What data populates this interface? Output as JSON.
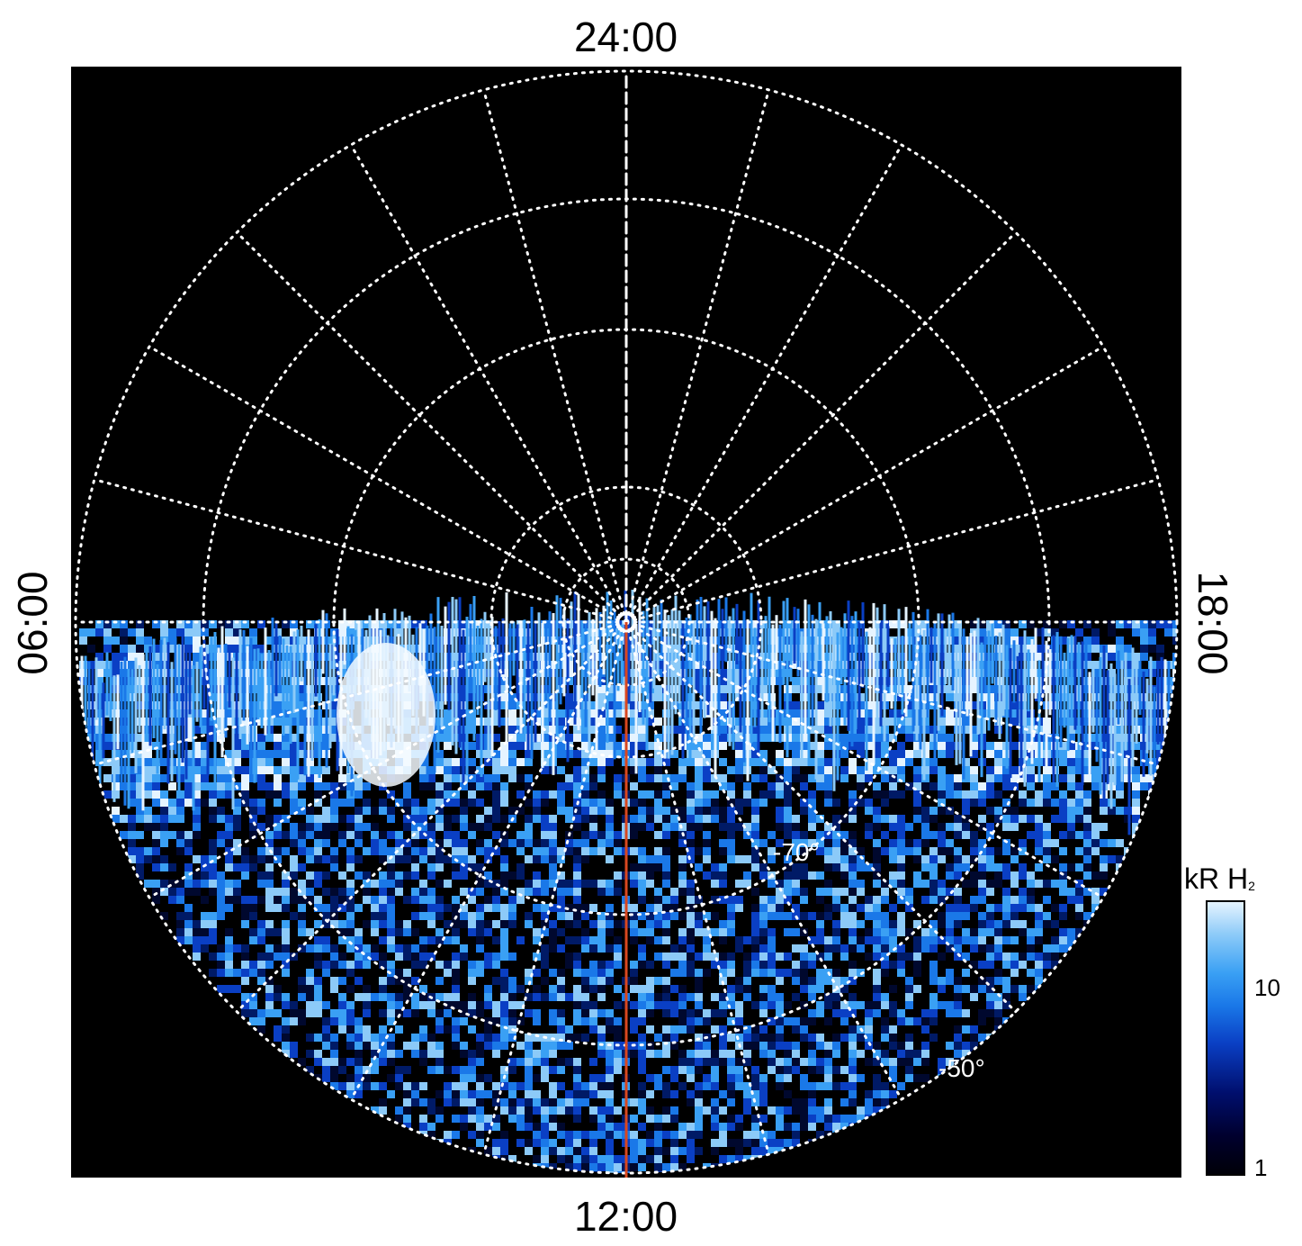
{
  "local_time_labels": {
    "top": "24:00",
    "bottom": "12:00",
    "left": "06:00",
    "right": "18:00"
  },
  "latitude_labels": [
    {
      "text": "-70°",
      "latitude": -70
    },
    {
      "text": "-50°",
      "latitude": -50
    }
  ],
  "colorbar": {
    "title": "kR H",
    "subscript": "2",
    "ticks": [
      {
        "label": "10",
        "value": 10
      },
      {
        "label": "1",
        "value": 1
      }
    ],
    "scale": "log",
    "range": [
      1,
      30
    ]
  },
  "colors": {
    "background": "#000000",
    "grid": "#ffffff",
    "meridian_line": "#d9471f",
    "aurora_bright": "#ffffff",
    "aurora_mid": "#1e8cf0",
    "aurora_dark": "#001a66"
  }
}
